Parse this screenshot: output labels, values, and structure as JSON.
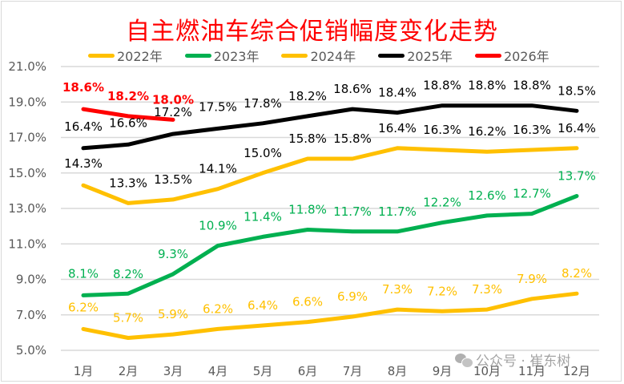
{
  "chart_data": {
    "type": "line",
    "title": "自主燃油车综合促销幅度变化走势",
    "xlabel": "",
    "ylabel": "",
    "categories": [
      "1月",
      "2月",
      "3月",
      "4月",
      "5月",
      "6月",
      "7月",
      "8月",
      "9月",
      "10月",
      "11月",
      "12月"
    ],
    "y_ticks": [
      "21.0%",
      "19.0%",
      "17.0%",
      "15.0%",
      "13.0%",
      "11.0%",
      "9.0%",
      "7.0%",
      "5.0%"
    ],
    "ylim": [
      5.0,
      21.0
    ],
    "grid": true,
    "legend_position": "top",
    "series": [
      {
        "name": "2022年",
        "color": "#FFC000",
        "label_color": "#FFC000",
        "values": [
          6.2,
          5.7,
          5.9,
          6.2,
          6.4,
          6.6,
          6.9,
          7.3,
          7.2,
          7.3,
          7.9,
          8.2
        ]
      },
      {
        "name": "2023年",
        "color": "#00B050",
        "label_color": "#00B050",
        "values": [
          8.1,
          8.2,
          9.3,
          10.9,
          11.4,
          11.8,
          11.7,
          11.7,
          12.2,
          12.6,
          12.7,
          13.7
        ]
      },
      {
        "name": "2024年",
        "color": "#FFC000",
        "label_color": "#000000",
        "values": [
          14.3,
          13.3,
          13.5,
          14.1,
          15.0,
          15.8,
          15.8,
          16.4,
          16.3,
          16.2,
          16.3,
          16.4
        ]
      },
      {
        "name": "2025年",
        "color": "#000000",
        "label_color": "#000000",
        "values": [
          16.4,
          16.6,
          17.2,
          17.5,
          17.8,
          18.2,
          18.6,
          18.4,
          18.8,
          18.8,
          18.8,
          18.5
        ]
      },
      {
        "name": "2026年",
        "color": "#FF0000",
        "label_color": "#FF0000",
        "values": [
          18.6,
          18.2,
          18.0
        ]
      }
    ],
    "value_format": "%.1f%%"
  },
  "legend": [
    {
      "label": "2022年",
      "color": "#FFC000"
    },
    {
      "label": "2023年",
      "color": "#00B050"
    },
    {
      "label": "2024年",
      "color": "#FFC000"
    },
    {
      "label": "2025年",
      "color": "#000000"
    },
    {
      "label": "2026年",
      "color": "#FF0000"
    }
  ],
  "watermark": "公众号 · 崔东树"
}
